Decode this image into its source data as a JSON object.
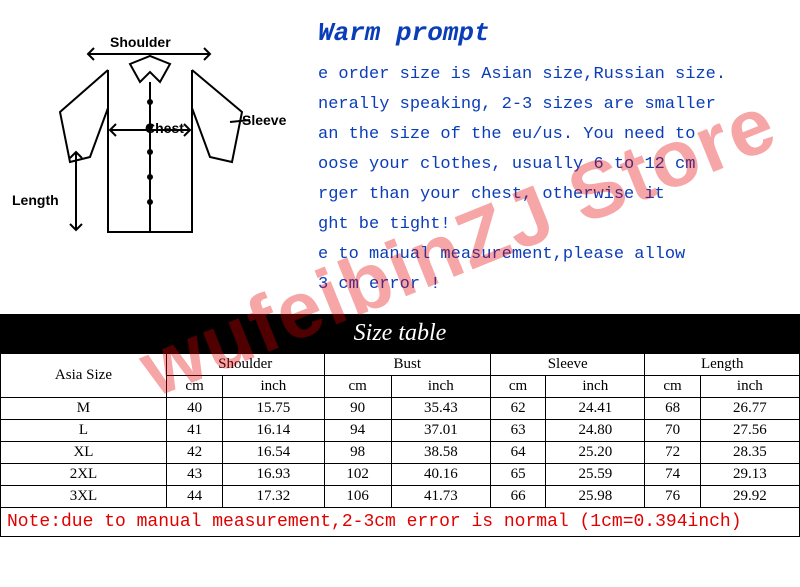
{
  "shirt_labels": {
    "shoulder": "Shoulder",
    "sleeve": "Sleeve",
    "chest": "Chest",
    "length": "Length"
  },
  "prompt": {
    "title": "Warm prompt",
    "lines": [
      "e order size is Asian size,Russian size.",
      "nerally speaking, 2-3 sizes are smaller",
      "an the size of the eu/us. You need to",
      "oose your clothes, usually 6 to 12 cm",
      "rger than your chest, otherwise it",
      "ght be tight!",
      "e to manual measurement,please allow",
      "3 cm error !"
    ]
  },
  "table_title": "Size table",
  "table": {
    "size_label": "Asia Size",
    "groups": [
      "Shoulder",
      "Bust",
      "Sleeve",
      "Length"
    ],
    "units": [
      "cm",
      "inch"
    ],
    "rows": [
      {
        "size": "M",
        "shoulder_cm": "40",
        "shoulder_in": "15.75",
        "bust_cm": "90",
        "bust_in": "35.43",
        "sleeve_cm": "62",
        "sleeve_in": "24.41",
        "length_cm": "68",
        "length_in": "26.77"
      },
      {
        "size": "L",
        "shoulder_cm": "41",
        "shoulder_in": "16.14",
        "bust_cm": "94",
        "bust_in": "37.01",
        "sleeve_cm": "63",
        "sleeve_in": "24.80",
        "length_cm": "70",
        "length_in": "27.56"
      },
      {
        "size": "XL",
        "shoulder_cm": "42",
        "shoulder_in": "16.54",
        "bust_cm": "98",
        "bust_in": "38.58",
        "sleeve_cm": "64",
        "sleeve_in": "25.20",
        "length_cm": "72",
        "length_in": "28.35"
      },
      {
        "size": "2XL",
        "shoulder_cm": "43",
        "shoulder_in": "16.93",
        "bust_cm": "102",
        "bust_in": "40.16",
        "sleeve_cm": "65",
        "sleeve_in": "25.59",
        "length_cm": "74",
        "length_in": "29.13"
      },
      {
        "size": "3XL",
        "shoulder_cm": "44",
        "shoulder_in": "17.32",
        "bust_cm": "106",
        "bust_in": "41.73",
        "sleeve_cm": "66",
        "sleeve_in": "25.98",
        "length_cm": "76",
        "length_in": "29.92"
      }
    ]
  },
  "note": "Note:due to manual measurement,2-3cm error is normal (1cm=0.394inch)",
  "watermark": "wufeibinZJ Store",
  "colors": {
    "prompt_text": "#0a3db8",
    "note_text": "#e00000",
    "title_bg": "#000000",
    "title_fg": "#ffffff",
    "border": "#000000",
    "watermark": "rgba(230,0,0,0.35)",
    "background": "#ffffff"
  }
}
